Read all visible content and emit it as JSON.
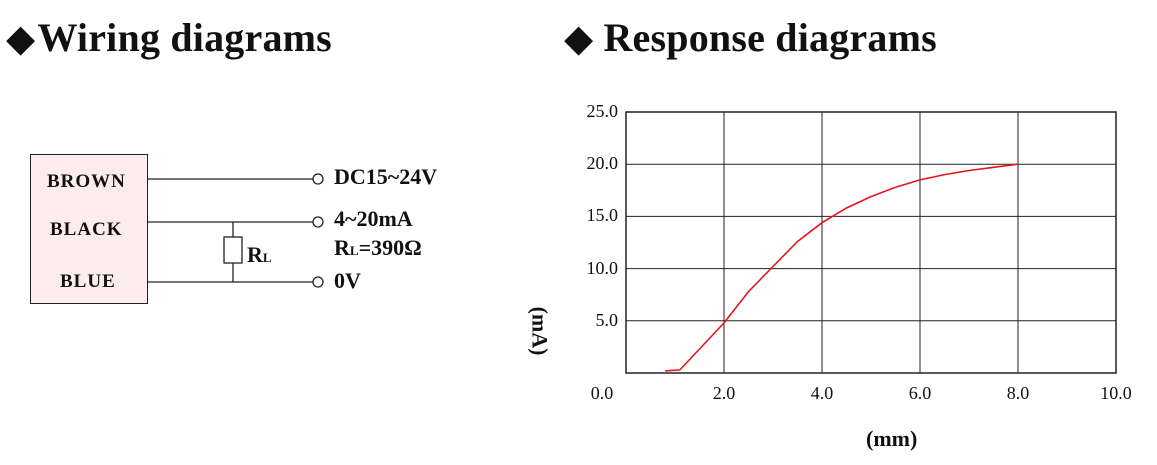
{
  "headings": {
    "wiring_diamond": "◆",
    "wiring": "Wiring diagrams",
    "response_diamond": "◆",
    "response": "Response diagrams"
  },
  "wiring": {
    "wires": [
      "BROWN",
      "BLACK",
      "BLUE"
    ],
    "terminals": [
      "DC15~24V",
      "4~20mA",
      "0V"
    ],
    "load_value_prefix": "R",
    "load_value_sub": "L",
    "load_value_rest": "=390Ω",
    "resistor_label": "R",
    "resistor_sub": "L",
    "box_color": "#fcecec"
  },
  "chart_data": {
    "type": "line",
    "xlabel": "(mm)",
    "ylabel": "(mA)",
    "x_ticks": [
      "0.0",
      "2.0",
      "4.0",
      "6.0",
      "8.0",
      "10.0"
    ],
    "y_ticks": [
      "0.0",
      "5.0",
      "10.0",
      "15.0",
      "20.0",
      "25.0"
    ],
    "xlim": [
      0,
      10
    ],
    "ylim": [
      0,
      25
    ],
    "grid": true,
    "line_color": "#e8141b",
    "series": [
      {
        "x": [
          0.8,
          1.1,
          2.0,
          2.5,
          3.0,
          3.5,
          4.0,
          4.5,
          5.0,
          5.5,
          6.0,
          6.5,
          7.0,
          7.5,
          8.0
        ],
        "y": [
          0.2,
          0.3,
          4.8,
          7.8,
          10.2,
          12.6,
          14.4,
          15.8,
          16.9,
          17.8,
          18.5,
          19.0,
          19.4,
          19.7,
          20.0
        ]
      }
    ]
  }
}
